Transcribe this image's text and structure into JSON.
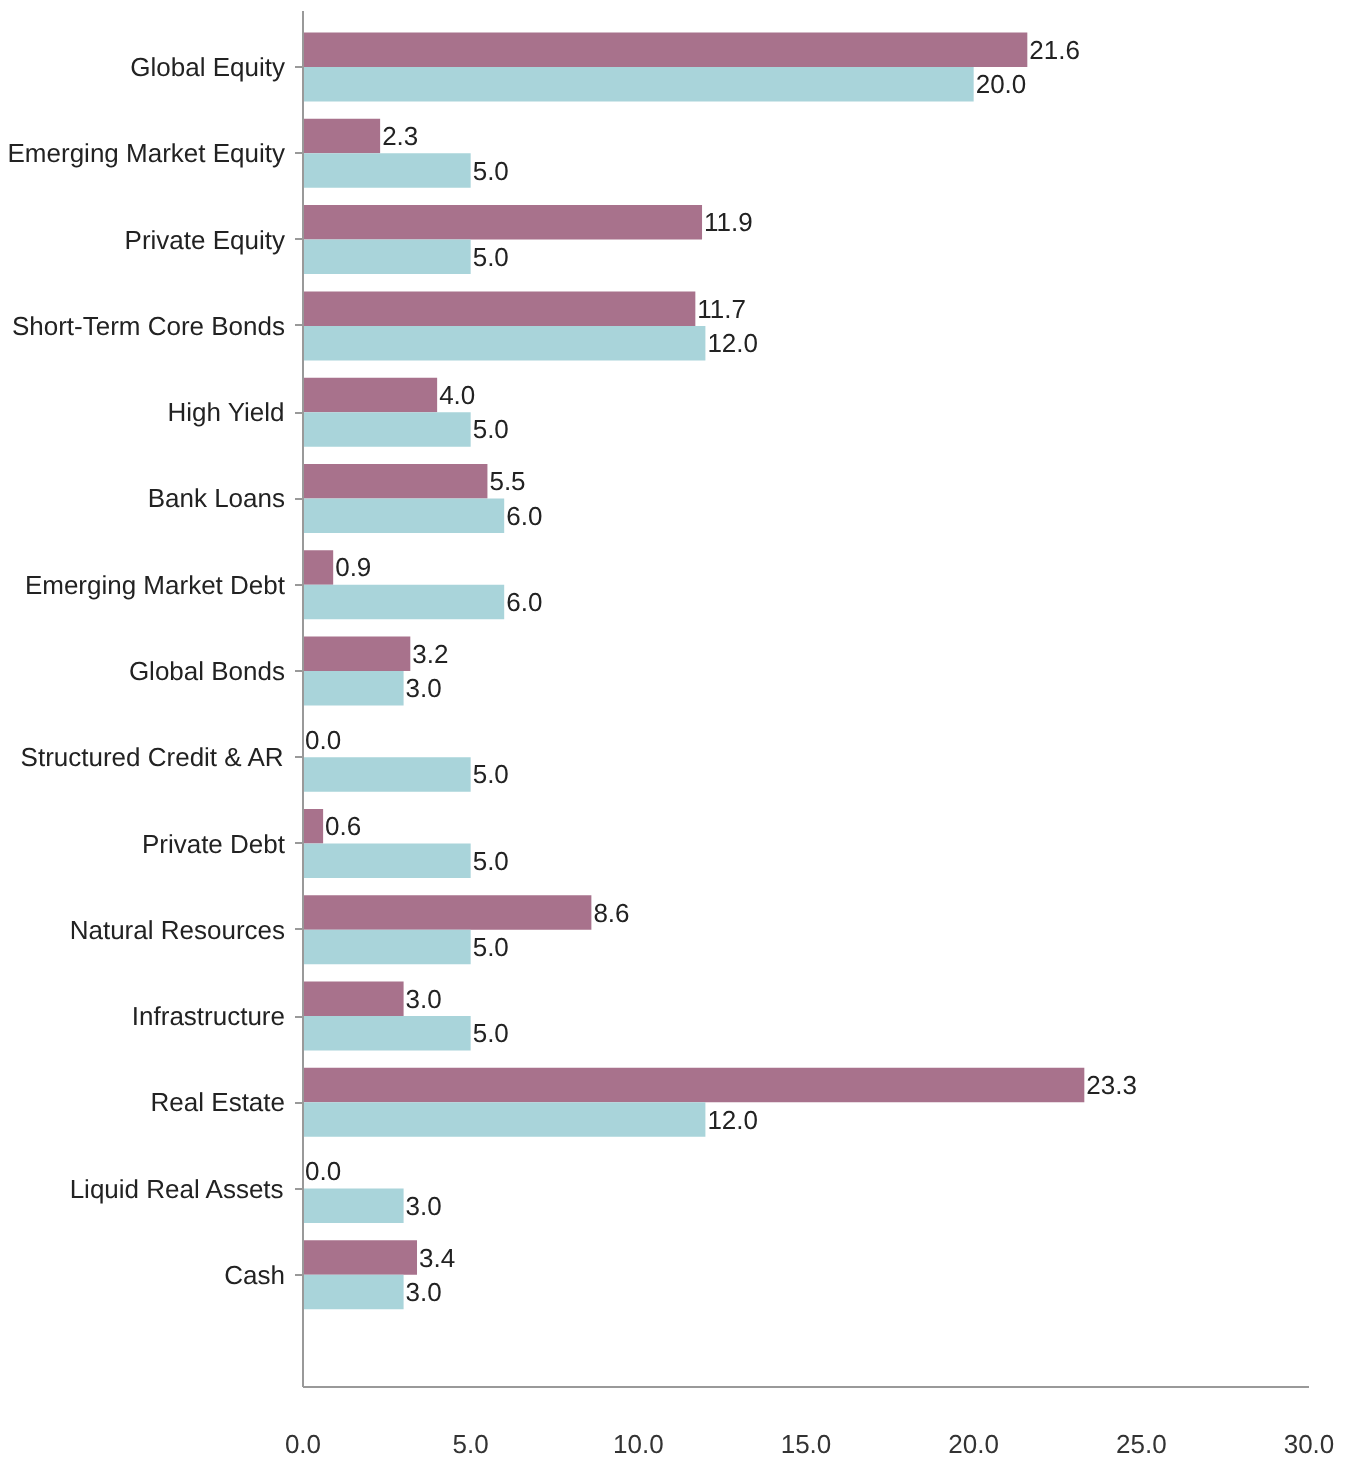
{
  "chart_data": {
    "type": "bar",
    "orientation": "horizontal",
    "categories": [
      "Global Equity",
      "Emerging Market Equity",
      "Private Equity",
      "Short-Term Core Bonds",
      "High Yield",
      "Bank Loans",
      "Emerging Market Debt",
      "Global Bonds",
      "Structured Credit & AR",
      "Private Debt",
      "Natural Resources",
      "Infrastructure",
      "Real Estate",
      "Liquid Real Assets",
      "Cash"
    ],
    "series": [
      {
        "color": "#a8728c",
        "values": [
          21.6,
          2.3,
          11.9,
          11.7,
          4.0,
          5.5,
          0.9,
          3.2,
          0.0,
          0.6,
          8.6,
          3.0,
          23.3,
          0.0,
          3.4
        ],
        "value_labels": [
          "21.6",
          "2.3",
          "11.9",
          "11.7",
          "4.0",
          "5.5",
          "0.9",
          "3.2",
          "0.0",
          "0.6",
          "8.6",
          "3.0",
          "23.3",
          "0.0",
          "3.4"
        ]
      },
      {
        "color": "#a9d4da",
        "values": [
          20.0,
          5.0,
          5.0,
          12.0,
          5.0,
          6.0,
          6.0,
          3.0,
          5.0,
          5.0,
          5.0,
          5.0,
          12.0,
          3.0,
          3.0
        ],
        "value_labels": [
          "20.0",
          "5.0",
          "5.0",
          "12.0",
          "5.0",
          "6.0",
          "6.0",
          "3.0",
          "5.0",
          "5.0",
          "5.0",
          "5.0",
          "12.0",
          "3.0",
          "3.0"
        ]
      }
    ],
    "xlim": [
      0,
      30
    ],
    "xticks": [
      {
        "value": 0,
        "label": "0.0"
      },
      {
        "value": 5,
        "label": "5.0"
      },
      {
        "value": 10,
        "label": "10.0"
      },
      {
        "value": 15,
        "label": "15.0"
      },
      {
        "value": 20,
        "label": "20.0"
      },
      {
        "value": 25,
        "label": "25.0"
      },
      {
        "value": 30,
        "label": "30.0"
      }
    ]
  }
}
